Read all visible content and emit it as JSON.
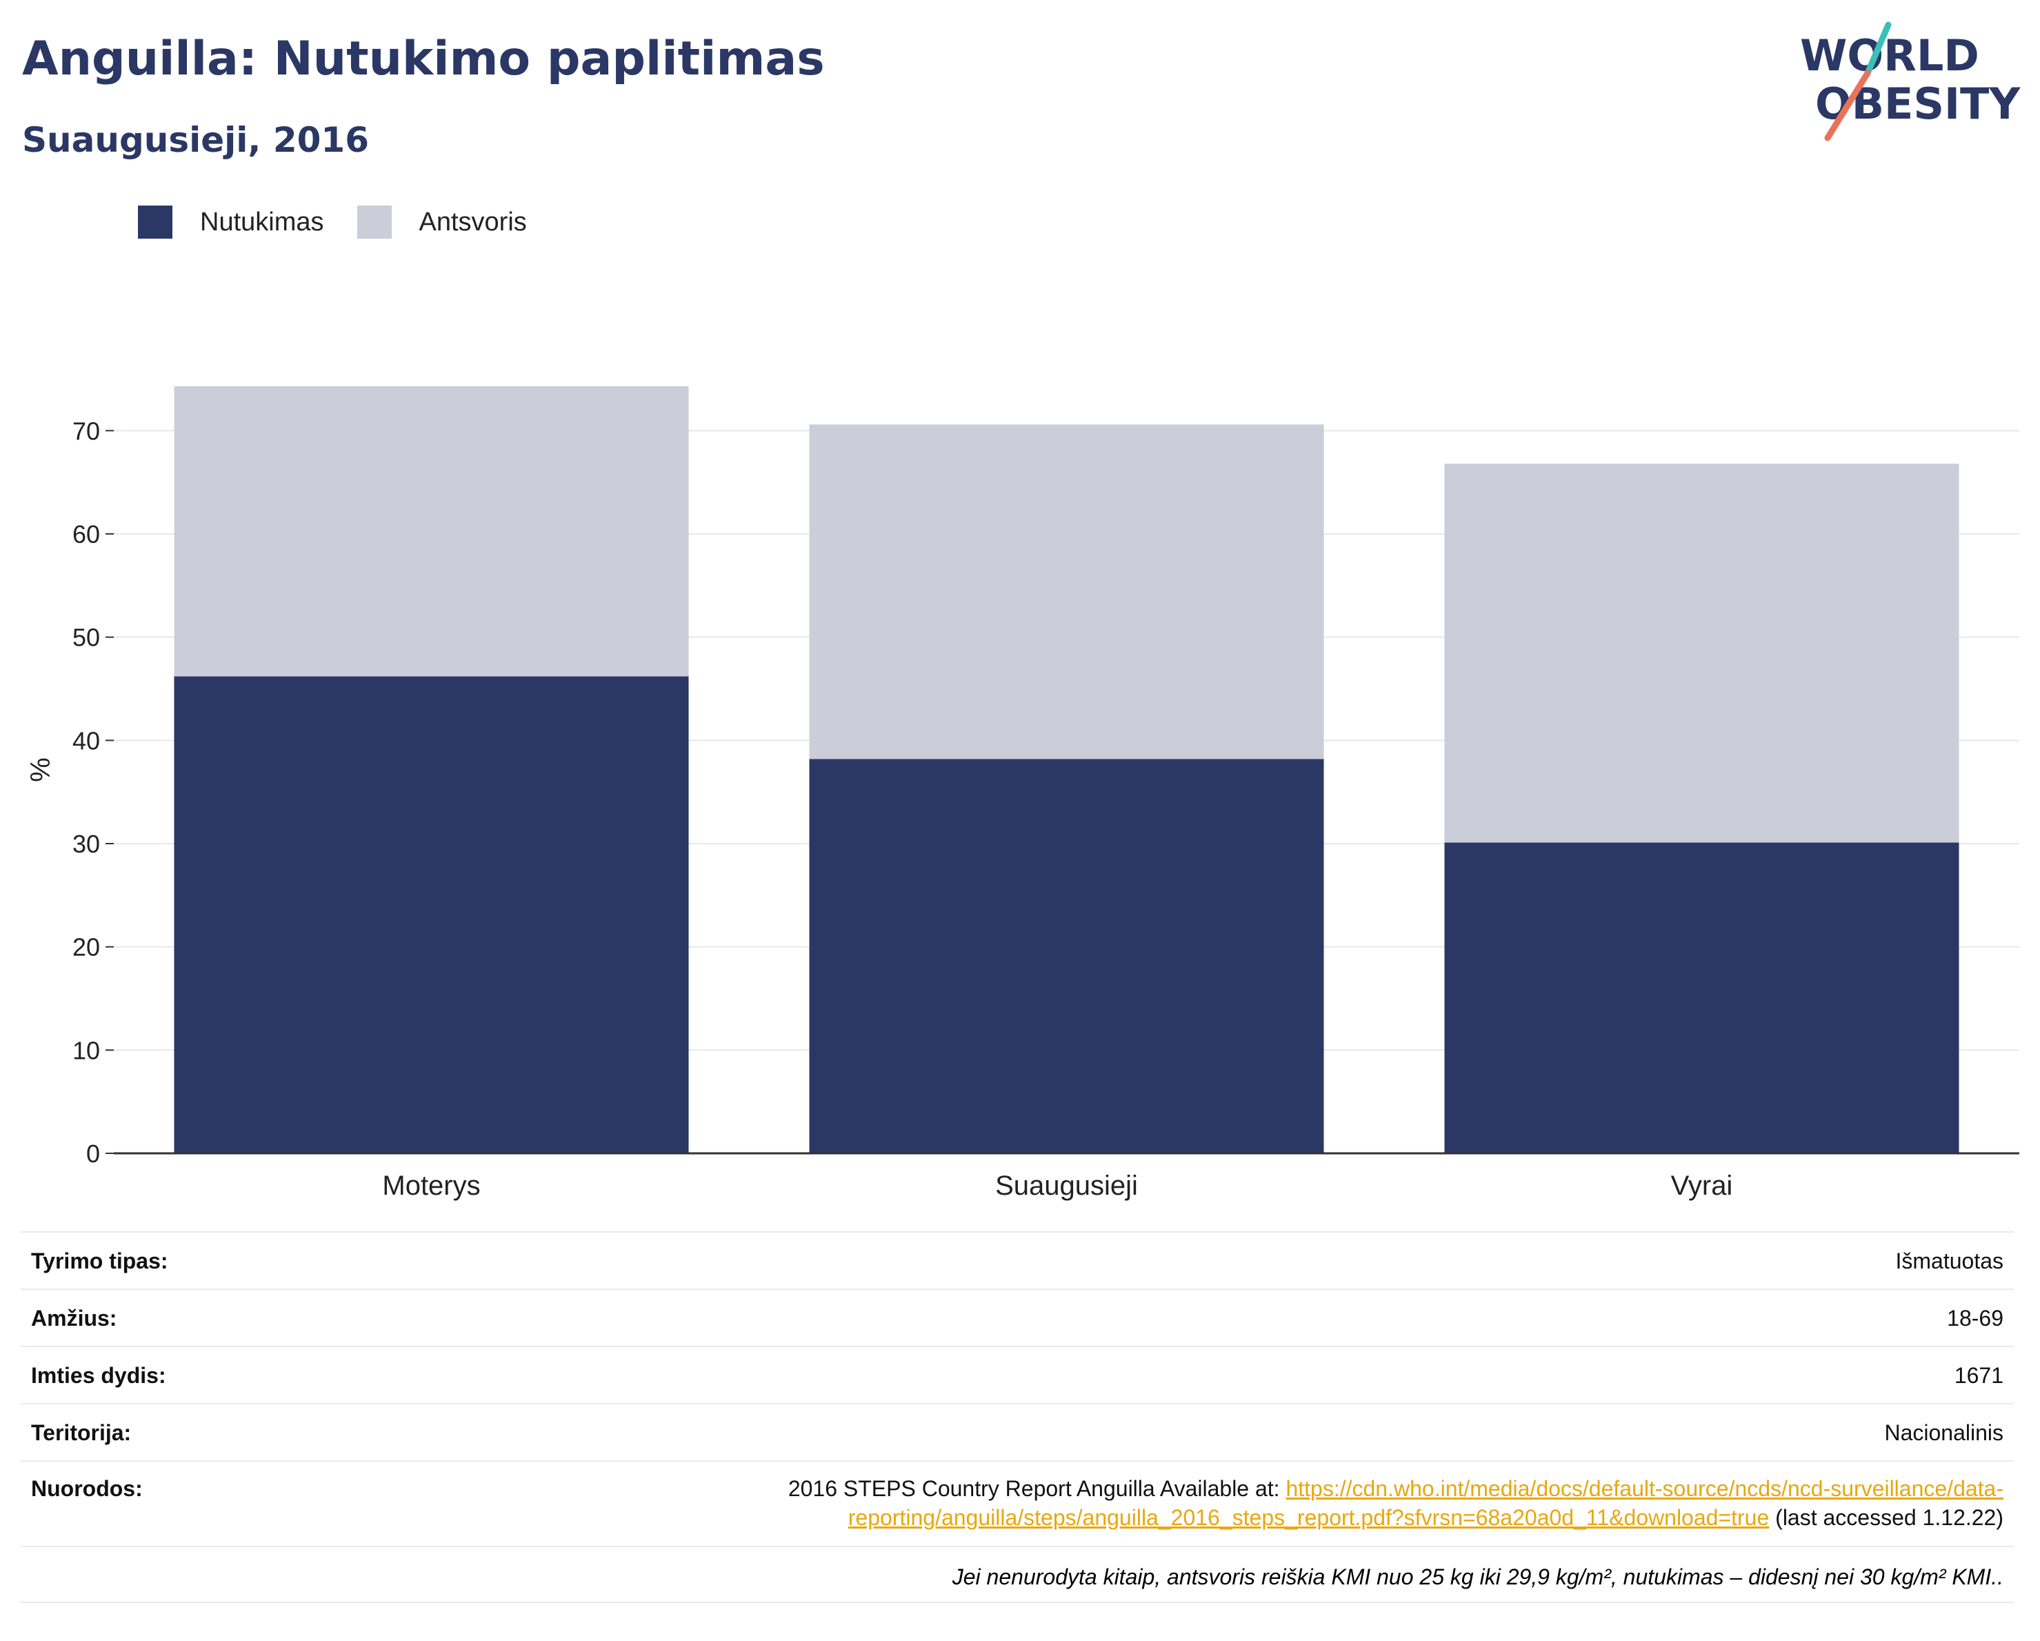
{
  "header": {
    "title": "Anguilla: Nutukimo paplitimas",
    "subtitle": "Suaugusieji, 2016"
  },
  "logo": {
    "line1": "WORLD",
    "line2": "OBESITY",
    "colors": {
      "text": "#2b3764",
      "slash_top": "#3bbfb8",
      "slash_bottom": "#e8735a"
    }
  },
  "legend": [
    {
      "label": "Nutukimas",
      "color": "#2b3764"
    },
    {
      "label": "Antsvoris",
      "color": "#cbcdd8"
    }
  ],
  "chart_data": {
    "type": "bar",
    "stacked": true,
    "categories": [
      "Moterys",
      "Suaugusieji",
      "Vyrai"
    ],
    "series": [
      {
        "name": "Nutukimas",
        "color": "#2b3764",
        "values": [
          46.2,
          38.2,
          30.1
        ]
      },
      {
        "name": "Antsvoris",
        "color": "#cbcdd8",
        "values": [
          28.1,
          32.4,
          36.7
        ]
      }
    ],
    "ylabel": "%",
    "xlabel": "",
    "ylim": [
      0,
      74.3
    ],
    "yticks": [
      0,
      10,
      20,
      30,
      40,
      50,
      60,
      70
    ],
    "grid": true,
    "legend_position": "top-left"
  },
  "info": {
    "rows": [
      {
        "label": "Tyrimo tipas:",
        "value": "Išmatuotas"
      },
      {
        "label": "Amžius:",
        "value": "18-69"
      },
      {
        "label": "Imties dydis:",
        "value": "1671"
      },
      {
        "label": "Teritorija:",
        "value": "Nacionalinis"
      }
    ],
    "reference": {
      "label": "Nuorodos:",
      "prefix": "2016 STEPS Country Report Anguilla Available at: ",
      "link": "https://cdn.who.int/media/docs/default-source/ncds/ncd-surveillance/data-reporting/anguilla/steps/anguilla_2016_steps_report.pdf?sfvrsn=68a20a0d_11&download=true",
      "suffix": " (last accessed 1.12.22)"
    },
    "note": "Jei nenurodyta kitaip, antsvoris reiškia KMI nuo 25 kg iki 29,9 kg/m², nutukimas – didesnį nei 30 kg/m² KMI.."
  }
}
